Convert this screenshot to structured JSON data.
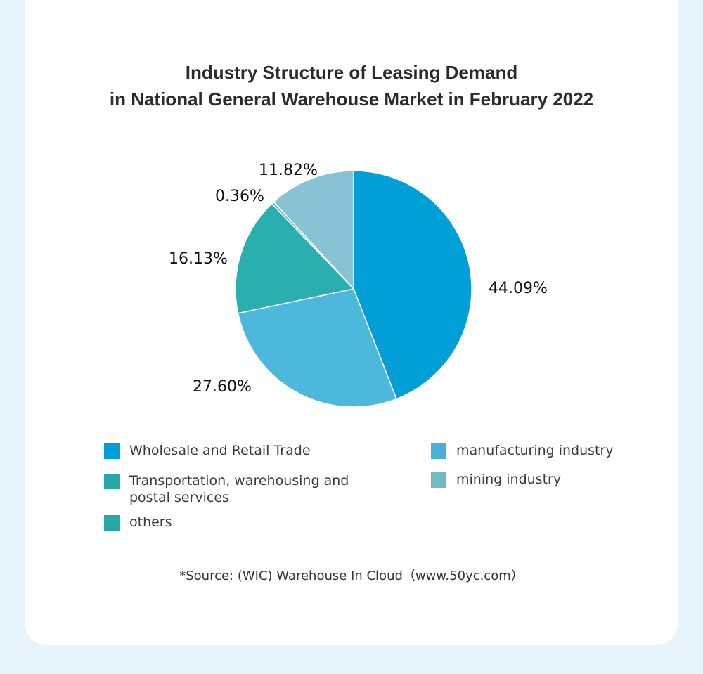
{
  "title_line1": "Industry Structure of Leasing Demand",
  "title_line2": "in National General Warehouse Market in February 2022",
  "source": "*Source: (WIC) Warehouse In Cloud（www.50yc.com）",
  "chart_data": {
    "type": "pie",
    "slices": [
      {
        "label": "Wholesale and Retail Trade",
        "value": 44.09,
        "display": "44.09%",
        "color": "#009fd8"
      },
      {
        "label": "manufacturing industry",
        "value": 27.6,
        "display": "27.60%",
        "color": "#4bb8dc"
      },
      {
        "label": "Transportation, warehousing and postal services",
        "value": 16.13,
        "display": "16.13%",
        "color": "#2aaeaf"
      },
      {
        "label": "mining industry",
        "value": 0.36,
        "display": "0.36%",
        "color": "#6dbcc2"
      },
      {
        "label": "others",
        "value": 11.82,
        "display": "11.82%",
        "color": "#88c2d4"
      }
    ],
    "legend": [
      {
        "label": "Wholesale and Retail Trade",
        "color": "#009fd8"
      },
      {
        "label": "manufacturing industry",
        "color": "#4bb0d8"
      },
      {
        "label": "Transportation, warehousing and postal services",
        "color": "#27a9a6"
      },
      {
        "label": "mining industry",
        "color": "#6dbcc2"
      },
      {
        "label": "others",
        "color": "#27a9a6"
      }
    ],
    "legend_position": "bottom"
  }
}
